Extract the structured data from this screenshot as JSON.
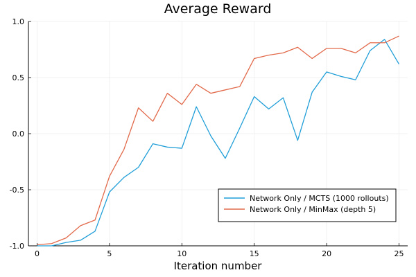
{
  "chart_data": {
    "type": "line",
    "title": "Average Reward",
    "xlabel": "Iteration number",
    "ylabel": "",
    "xlim": [
      -0.6,
      25.6
    ],
    "ylim": [
      -1.0,
      1.0
    ],
    "xticks": [
      0,
      5,
      10,
      15,
      20,
      25
    ],
    "xtick_labels": [
      "0",
      "5",
      "10",
      "15",
      "20",
      "25"
    ],
    "yticks": [
      -1.0,
      -0.5,
      0.0,
      0.5,
      1.0
    ],
    "ytick_labels": [
      "-1.0",
      "-0.5",
      "0.0",
      "0.5",
      "1.0"
    ],
    "grid": true,
    "legend_position": "bottom-right",
    "x": [
      0,
      1,
      2,
      3,
      4,
      5,
      6,
      7,
      8,
      9,
      10,
      11,
      12,
      13,
      14,
      15,
      16,
      17,
      18,
      19,
      20,
      21,
      22,
      23,
      24,
      25
    ],
    "series": [
      {
        "name": "Network Only / MCTS (1000 rollouts)",
        "color": "#1f9ed8",
        "values": [
          -1.0,
          -1.0,
          -0.97,
          -0.95,
          -0.87,
          -0.52,
          -0.39,
          -0.3,
          -0.09,
          -0.12,
          -0.13,
          0.24,
          -0.02,
          -0.22,
          0.05,
          0.33,
          0.22,
          0.32,
          -0.06,
          0.37,
          0.55,
          0.51,
          0.48,
          0.74,
          0.84,
          0.62
        ]
      },
      {
        "name": "Network Only / MinMax (depth 5)",
        "color": "#e2694a",
        "values": [
          -0.99,
          -0.98,
          -0.93,
          -0.82,
          -0.77,
          -0.38,
          -0.14,
          0.23,
          0.11,
          0.36,
          0.26,
          0.44,
          0.36,
          0.39,
          0.42,
          0.67,
          0.7,
          0.72,
          0.77,
          0.67,
          0.76,
          0.76,
          0.72,
          0.81,
          0.81,
          0.87
        ]
      }
    ]
  }
}
